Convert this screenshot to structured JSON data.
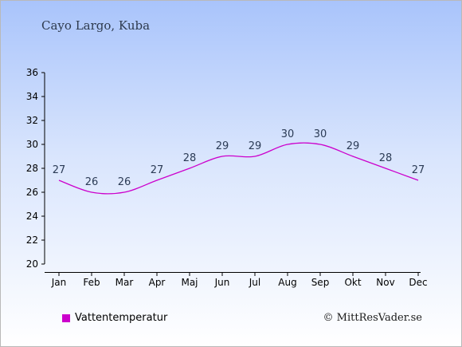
{
  "page": {
    "location": "Cayo Largo, Kuba",
    "credit": "© MittResVader.se"
  },
  "colors": {
    "series": "#cc00cc"
  },
  "chart_data": {
    "type": "line",
    "categories": [
      "Jan",
      "Feb",
      "Mar",
      "Apr",
      "Maj",
      "Jun",
      "Jul",
      "Aug",
      "Sep",
      "Okt",
      "Nov",
      "Dec"
    ],
    "series": [
      {
        "name": "Vattentemperatur",
        "values": [
          27,
          26,
          26,
          27,
          28,
          29,
          29,
          30,
          30,
          29,
          28,
          27
        ]
      }
    ],
    "data_labels": [
      "27",
      "26",
      "26",
      "27",
      "28",
      "29",
      "29",
      "30",
      "30",
      "29",
      "28",
      "27"
    ],
    "yticks": [
      20,
      22,
      24,
      26,
      28,
      30,
      32,
      34,
      36
    ],
    "ylim": [
      20,
      36
    ],
    "grid": false,
    "legend": "bottom-left"
  }
}
